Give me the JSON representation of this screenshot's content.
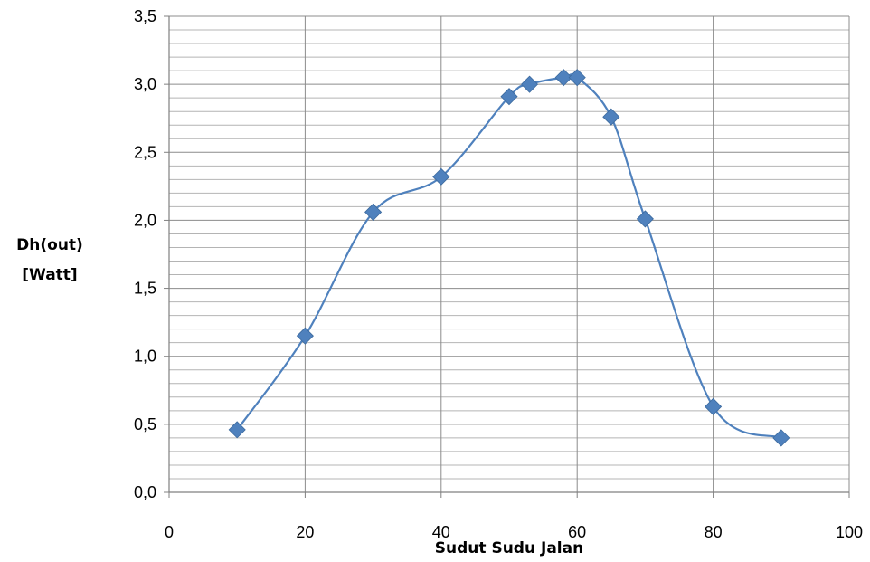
{
  "chart_data": {
    "type": "line",
    "smooth": true,
    "marker": "diamond",
    "colors": {
      "series": "#4f81bd",
      "marker": "#4f81bd",
      "grid_major": "#8c8c8c",
      "grid_minor": "#b4b4b4",
      "axis": "#808080"
    },
    "xlabel": "Sudut Sudu Jalan",
    "ylabel_lines": [
      "Dh(out)",
      "[Watt]"
    ],
    "xlim": [
      0,
      100
    ],
    "ylim": [
      0,
      3.5
    ],
    "x_ticks": [
      0,
      20,
      40,
      60,
      80,
      100
    ],
    "x_tick_labels": [
      "0",
      "20",
      "40",
      "60",
      "80",
      "100"
    ],
    "y_ticks": [
      0,
      0.5,
      1.0,
      1.5,
      2.0,
      2.5,
      3.0,
      3.5
    ],
    "y_tick_labels": [
      "0,0",
      "0,5",
      "1,0",
      "1,5",
      "2,0",
      "2,5",
      "3,0",
      "3,5"
    ],
    "grid": {
      "major": true,
      "minor_y_step": 0.1
    },
    "legend": "none",
    "series": [
      {
        "x": [
          10,
          20,
          30,
          40,
          50,
          53,
          58,
          60,
          65,
          70,
          80,
          90
        ],
        "y": [
          0.46,
          1.15,
          2.06,
          2.32,
          2.91,
          3.0,
          3.05,
          3.05,
          2.76,
          2.01,
          0.63,
          0.4
        ]
      }
    ]
  }
}
